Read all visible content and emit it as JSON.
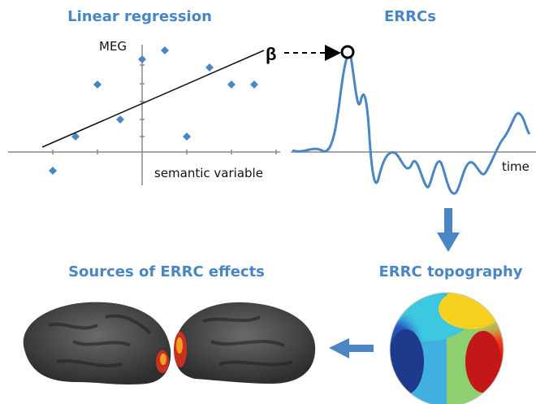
{
  "panels": {
    "regression": {
      "title": "Linear regression",
      "y_label": "MEG",
      "x_label": "semantic variable",
      "coefficient": "β"
    },
    "errc": {
      "title": "ERRCs",
      "x_label": "time"
    },
    "topography": {
      "title": "ERRC topography"
    },
    "sources": {
      "title": "Sources of ERRC effects"
    }
  }
}
